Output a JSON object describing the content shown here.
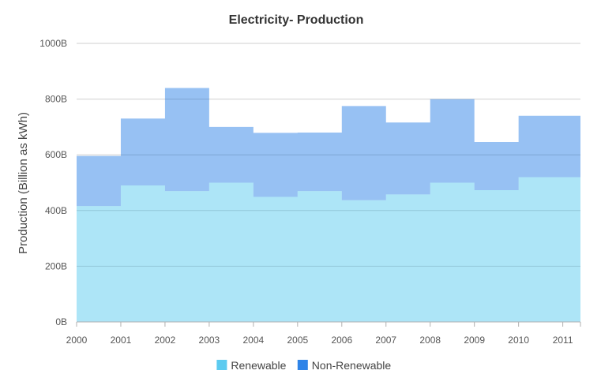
{
  "chart_data": {
    "type": "area",
    "subtype": "stacked-step-area",
    "title": "Electricity- Production",
    "xlabel": "",
    "ylabel": "Production (Billion as kWh)",
    "ylim": [
      0,
      1000
    ],
    "yticks": [
      0,
      200,
      400,
      600,
      800,
      1000
    ],
    "ytick_labels": [
      "0B",
      "200B",
      "400B",
      "600B",
      "800B",
      "1000B"
    ],
    "x": [
      2000,
      2001,
      2002,
      2003,
      2004,
      2005,
      2006,
      2007,
      2008,
      2009,
      2010,
      2011
    ],
    "x_labels": [
      "2000",
      "2001",
      "2002",
      "2003",
      "2004",
      "2005",
      "2006",
      "2007",
      "2008",
      "2009",
      "2010",
      "2011"
    ],
    "grid": true,
    "legend_position": "bottom-center",
    "series": [
      {
        "name": "Renewable",
        "color": "#5ccbf0",
        "values": [
          416,
          490,
          470,
          500,
          449,
          470,
          437,
          458,
          500,
          473,
          520,
          520
        ]
      },
      {
        "name": "Non-Renewable",
        "color": "#2f84e8",
        "values": [
          180,
          240,
          370,
          200,
          230,
          210,
          338,
          258,
          300,
          173,
          220,
          220
        ]
      }
    ]
  }
}
